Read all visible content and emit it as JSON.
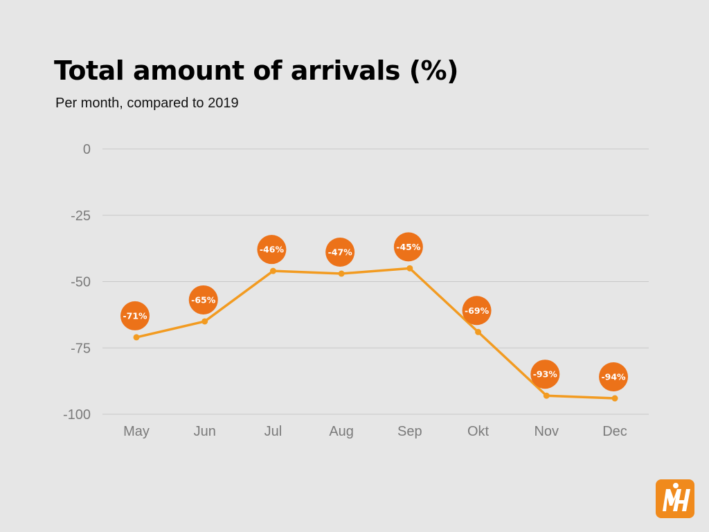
{
  "title": "Total amount of arrivals (%)",
  "subtitle": "Per month, compared to 2019",
  "colors": {
    "line": "#f29b21",
    "badge": "#ec7219",
    "grid": "#c8c8c8",
    "axis_text": "#7a7a7a",
    "logo": "#f08a1c"
  },
  "logo": {
    "icon": "brand-logo-icon",
    "text": "MH"
  },
  "chart_data": {
    "type": "line",
    "categories": [
      "May",
      "Jun",
      "Jul",
      "Aug",
      "Sep",
      "Okt",
      "Nov",
      "Dec"
    ],
    "values": [
      -71,
      -65,
      -46,
      -47,
      -45,
      -69,
      -93,
      -94
    ],
    "data_labels": [
      "-71%",
      "-65%",
      "-46%",
      "-47%",
      "-45%",
      "-69%",
      "-93%",
      "-94%"
    ],
    "yticks": [
      0,
      -25,
      -50,
      -75,
      -100
    ],
    "ytick_labels": [
      "0",
      "-25",
      "-50",
      "-75",
      "-100"
    ],
    "ylim": [
      -100,
      0
    ],
    "grid": true,
    "legend": false
  }
}
